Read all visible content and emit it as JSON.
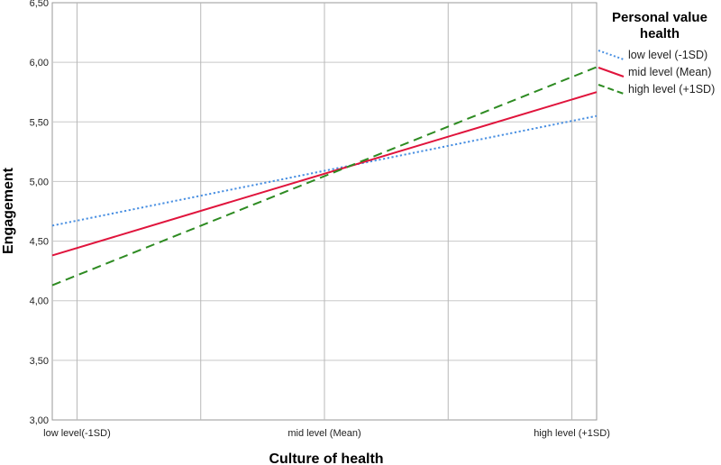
{
  "chart_data": {
    "type": "line",
    "xlabel": "Culture of health",
    "ylabel": "Engagement",
    "categories": [
      "low level(-1SD)",
      "mid level (Mean)",
      "high level (+1SD)"
    ],
    "x_tick_labels": [
      "low level(-1SD)",
      "mid level (Mean)",
      "high level (+1SD)"
    ],
    "x_domain": [
      -1.1,
      1.1
    ],
    "x_tick_positions": [
      -1,
      0,
      1
    ],
    "ylim": [
      3.0,
      6.5
    ],
    "y_ticks": [
      "3,00",
      "3,50",
      "4,00",
      "4,50",
      "5,00",
      "5,50",
      "6,00",
      "6,50"
    ],
    "y_tick_values": [
      3.0,
      3.5,
      4.0,
      4.5,
      5.0,
      5.5,
      6.0,
      6.5
    ],
    "grid": true,
    "legend": {
      "title": "Personal value health",
      "title_lines": [
        "Personal value",
        "health"
      ],
      "placement": "right"
    },
    "series": [
      {
        "name": "low level (-1SD)",
        "x": [
          -1.1,
          1.1
        ],
        "y": [
          4.63,
          5.55
        ],
        "color": "#4a90e2",
        "dash": "dotted"
      },
      {
        "name": "mid level (Mean)",
        "x": [
          -1.1,
          1.1
        ],
        "y": [
          4.38,
          5.75
        ],
        "color": "#e0143c",
        "dash": "solid"
      },
      {
        "name": "high level (+1SD)",
        "x": [
          -1.1,
          1.1
        ],
        "y": [
          4.13,
          5.96
        ],
        "color": "#2e8b22",
        "dash": "dashed"
      }
    ]
  }
}
